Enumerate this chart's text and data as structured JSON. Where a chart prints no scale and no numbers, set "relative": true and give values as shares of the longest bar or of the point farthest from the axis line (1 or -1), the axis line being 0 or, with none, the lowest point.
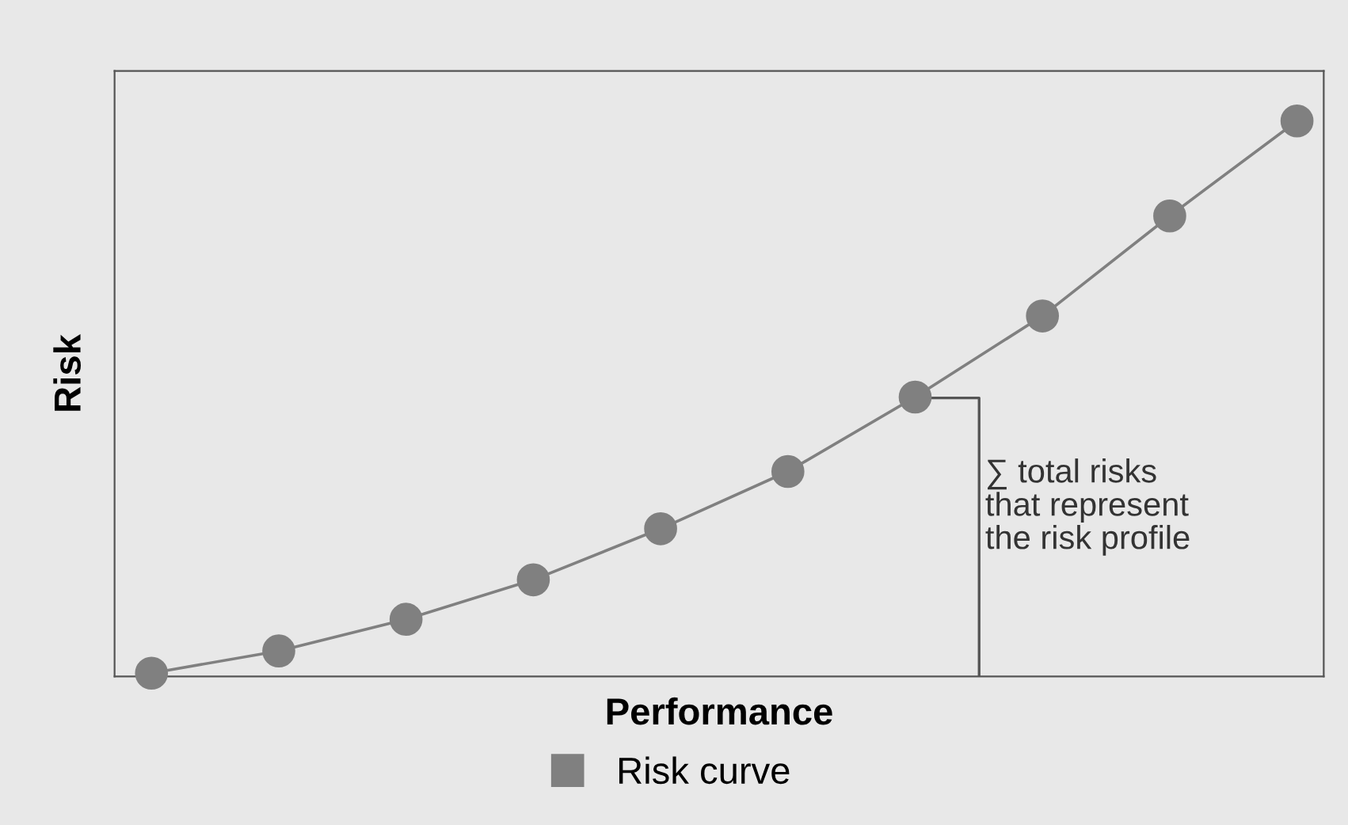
{
  "chart_data": {
    "type": "line",
    "relative": true,
    "xlabel": "Performance",
    "ylabel": "Risk",
    "categories": [
      null,
      null,
      null,
      null,
      null,
      null,
      null,
      null,
      null,
      null
    ],
    "series": [
      {
        "name": "Risk curve",
        "color": "#808080",
        "values": [
          0.006,
          0.046,
          0.103,
          0.174,
          0.266,
          0.369,
          0.503,
          0.649,
          0.829,
          1
        ]
      }
    ],
    "marker": "circle",
    "line_style": "solid",
    "legend": "bottom",
    "grid": false,
    "annotations": [
      "∑ total risks\nthat represent\nthe risk profile"
    ]
  }
}
